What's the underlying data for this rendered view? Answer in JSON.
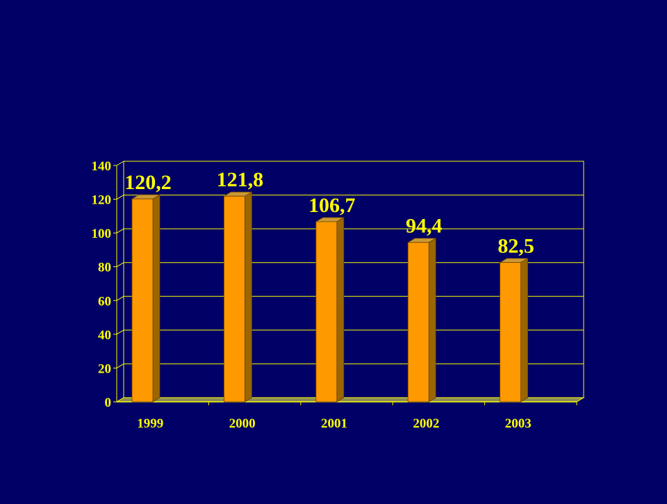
{
  "chart_data": {
    "type": "bar",
    "categories": [
      "1999",
      "2000",
      "2001",
      "2002",
      "2003"
    ],
    "values": [
      120.2,
      121.8,
      106.7,
      94.4,
      82.5
    ],
    "value_labels": [
      "120,2",
      "121,8",
      "106,7",
      "94,4",
      "82,5"
    ],
    "yticks": [
      "0",
      "20",
      "40",
      "60",
      "80",
      "100",
      "120",
      "140"
    ],
    "ylim": [
      0,
      140
    ],
    "grid": true,
    "legend": "none",
    "title": "",
    "xlabel": "",
    "ylabel": ""
  },
  "colors": {
    "background": "#000066",
    "bar_front": "#FF9900",
    "bar_side": "#996600",
    "bar_top": "#CC9933",
    "axis_and_grid": "#FFFF00",
    "label_text": "#FFFF00"
  }
}
